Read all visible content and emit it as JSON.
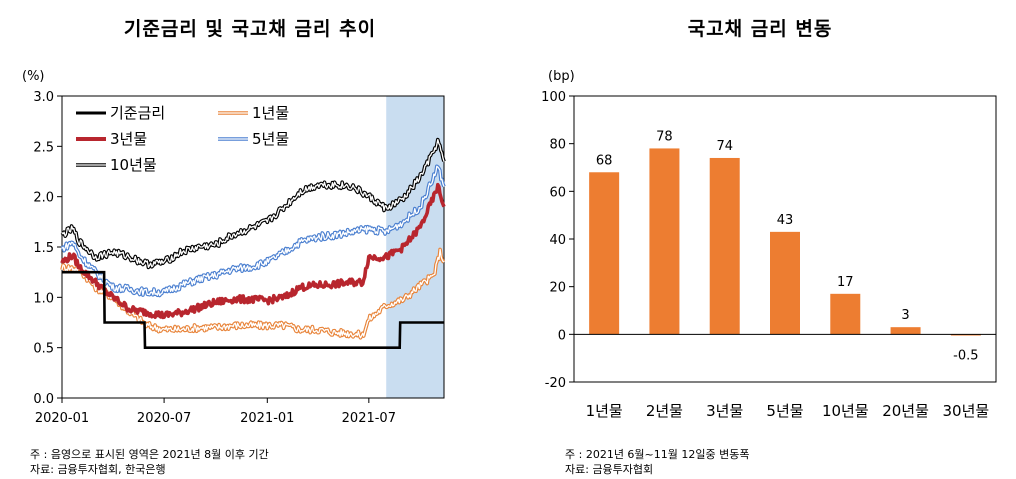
{
  "left_title": "기준금리 및 국고채 금리 추이",
  "right_title": "국고채 금리 변동",
  "notes_left": {
    "line1": "주   :  음영으로 표시된 영역은 2021년 8월 이후 기간",
    "line2": "자료:  금융투자협회, 한국은행"
  },
  "notes_right": {
    "line1": "주   :  2021년 6월~11월 12일중 변동폭",
    "line2": "자료: 금융투자협회"
  },
  "chart_data": [
    {
      "type": "line",
      "title": "기준금리 및 국고채 금리 추이",
      "unit_label": "(%)",
      "ylim": [
        0.0,
        3.0
      ],
      "y_ticks": [
        "0.0",
        "0.5",
        "1.0",
        "1.5",
        "2.0",
        "2.5",
        "3.0"
      ],
      "x_ticks": [
        "2020-01",
        "2020-07",
        "2021-01",
        "2021-07"
      ],
      "x_tick_dates": [
        "2020-01-01",
        "2020-07-01",
        "2021-01-01",
        "2021-07-01"
      ],
      "x_range": [
        "2020-01-01",
        "2021-11-12"
      ],
      "shaded_region": [
        "2021-08-01",
        "2021-11-12"
      ],
      "shade_color": "#c9ddf0",
      "grid": false,
      "legend_placement": "top-left",
      "series": [
        {
          "name": "기준금리",
          "color": "#000000",
          "style": "solid",
          "points": [
            [
              "2020-01-01",
              1.25
            ],
            [
              "2020-03-16",
              1.25
            ],
            [
              "2020-03-17",
              0.75
            ],
            [
              "2020-05-27",
              0.75
            ],
            [
              "2020-05-28",
              0.5
            ],
            [
              "2021-08-25",
              0.5
            ],
            [
              "2021-08-26",
              0.75
            ],
            [
              "2021-11-12",
              0.75
            ]
          ]
        },
        {
          "name": "1년물",
          "color": "#e8843a",
          "style": "hollow",
          "points": [
            [
              "2020-01-01",
              1.3
            ],
            [
              "2020-02-01",
              1.28
            ],
            [
              "2020-03-01",
              1.1
            ],
            [
              "2020-04-01",
              1.0
            ],
            [
              "2020-05-01",
              0.85
            ],
            [
              "2020-06-01",
              0.72
            ],
            [
              "2020-07-01",
              0.68
            ],
            [
              "2020-08-01",
              0.68
            ],
            [
              "2020-09-01",
              0.7
            ],
            [
              "2020-10-01",
              0.7
            ],
            [
              "2020-11-01",
              0.72
            ],
            [
              "2020-12-01",
              0.72
            ],
            [
              "2021-01-01",
              0.72
            ],
            [
              "2021-02-01",
              0.72
            ],
            [
              "2021-03-01",
              0.68
            ],
            [
              "2021-04-01",
              0.68
            ],
            [
              "2021-05-01",
              0.65
            ],
            [
              "2021-06-01",
              0.64
            ],
            [
              "2021-06-20",
              0.62
            ],
            [
              "2021-07-01",
              0.78
            ],
            [
              "2021-08-01",
              0.92
            ],
            [
              "2021-09-01",
              0.98
            ],
            [
              "2021-10-01",
              1.12
            ],
            [
              "2021-10-25",
              1.22
            ],
            [
              "2021-11-05",
              1.45
            ],
            [
              "2021-11-12",
              1.35
            ]
          ]
        },
        {
          "name": "3년물",
          "color": "#b8262e",
          "style": "thick",
          "points": [
            [
              "2020-01-01",
              1.35
            ],
            [
              "2020-01-20",
              1.42
            ],
            [
              "2020-02-01",
              1.3
            ],
            [
              "2020-03-01",
              1.15
            ],
            [
              "2020-03-20",
              1.05
            ],
            [
              "2020-04-01",
              1.0
            ],
            [
              "2020-05-01",
              0.88
            ],
            [
              "2020-06-01",
              0.85
            ],
            [
              "2020-07-01",
              0.82
            ],
            [
              "2020-08-01",
              0.85
            ],
            [
              "2020-09-01",
              0.9
            ],
            [
              "2020-10-01",
              0.95
            ],
            [
              "2020-11-01",
              0.98
            ],
            [
              "2020-12-01",
              0.98
            ],
            [
              "2021-01-01",
              0.97
            ],
            [
              "2021-02-01",
              1.0
            ],
            [
              "2021-03-01",
              1.1
            ],
            [
              "2021-04-01",
              1.12
            ],
            [
              "2021-05-01",
              1.13
            ],
            [
              "2021-06-01",
              1.15
            ],
            [
              "2021-06-20",
              1.15
            ],
            [
              "2021-07-01",
              1.4
            ],
            [
              "2021-08-01",
              1.4
            ],
            [
              "2021-09-01",
              1.5
            ],
            [
              "2021-10-01",
              1.7
            ],
            [
              "2021-10-25",
              2.0
            ],
            [
              "2021-11-01",
              2.1
            ],
            [
              "2021-11-12",
              1.9
            ]
          ]
        },
        {
          "name": "5년물",
          "color": "#4a7fd0",
          "style": "hollow",
          "points": [
            [
              "2020-01-01",
              1.48
            ],
            [
              "2020-01-20",
              1.55
            ],
            [
              "2020-02-01",
              1.42
            ],
            [
              "2020-03-01",
              1.25
            ],
            [
              "2020-04-01",
              1.1
            ],
            [
              "2020-05-01",
              1.08
            ],
            [
              "2020-06-01",
              1.05
            ],
            [
              "2020-07-01",
              1.05
            ],
            [
              "2020-08-01",
              1.12
            ],
            [
              "2020-09-01",
              1.18
            ],
            [
              "2020-10-01",
              1.22
            ],
            [
              "2020-11-01",
              1.28
            ],
            [
              "2020-12-01",
              1.3
            ],
            [
              "2021-01-01",
              1.35
            ],
            [
              "2021-02-01",
              1.45
            ],
            [
              "2021-03-01",
              1.55
            ],
            [
              "2021-04-01",
              1.6
            ],
            [
              "2021-05-01",
              1.62
            ],
            [
              "2021-06-01",
              1.65
            ],
            [
              "2021-07-01",
              1.68
            ],
            [
              "2021-08-01",
              1.65
            ],
            [
              "2021-09-01",
              1.75
            ],
            [
              "2021-10-01",
              1.9
            ],
            [
              "2021-10-25",
              2.2
            ],
            [
              "2021-11-01",
              2.3
            ],
            [
              "2021-11-12",
              2.1
            ]
          ]
        },
        {
          "name": "10년물",
          "color": "#000000",
          "style": "hollow",
          "points": [
            [
              "2020-01-01",
              1.62
            ],
            [
              "2020-01-20",
              1.68
            ],
            [
              "2020-02-01",
              1.55
            ],
            [
              "2020-03-01",
              1.4
            ],
            [
              "2020-04-01",
              1.45
            ],
            [
              "2020-05-01",
              1.4
            ],
            [
              "2020-06-01",
              1.33
            ],
            [
              "2020-07-01",
              1.35
            ],
            [
              "2020-08-01",
              1.45
            ],
            [
              "2020-09-01",
              1.5
            ],
            [
              "2020-10-01",
              1.52
            ],
            [
              "2020-11-01",
              1.62
            ],
            [
              "2020-12-01",
              1.68
            ],
            [
              "2021-01-01",
              1.75
            ],
            [
              "2021-02-01",
              1.9
            ],
            [
              "2021-03-01",
              2.05
            ],
            [
              "2021-04-01",
              2.12
            ],
            [
              "2021-05-01",
              2.12
            ],
            [
              "2021-06-01",
              2.1
            ],
            [
              "2021-07-01",
              2.0
            ],
            [
              "2021-08-01",
              1.88
            ],
            [
              "2021-09-01",
              1.98
            ],
            [
              "2021-10-01",
              2.2
            ],
            [
              "2021-10-25",
              2.45
            ],
            [
              "2021-11-01",
              2.55
            ],
            [
              "2021-11-12",
              2.35
            ]
          ]
        }
      ]
    },
    {
      "type": "bar",
      "title": "국고채 금리 변동",
      "unit_label": "(bp)",
      "categories": [
        "1년물",
        "2년물",
        "3년물",
        "5년물",
        "10년물",
        "20년물",
        "30년물"
      ],
      "values": [
        68,
        78,
        74,
        43,
        17,
        3,
        -0.5
      ],
      "value_labels": [
        "68",
        "78",
        "74",
        "43",
        "17",
        "3",
        "-0.5"
      ],
      "bar_color": "#ed7d31",
      "ylim": [
        -20,
        100
      ],
      "y_ticks": [
        "-20",
        "0",
        "20",
        "40",
        "60",
        "80",
        "100"
      ],
      "grid": false
    }
  ]
}
